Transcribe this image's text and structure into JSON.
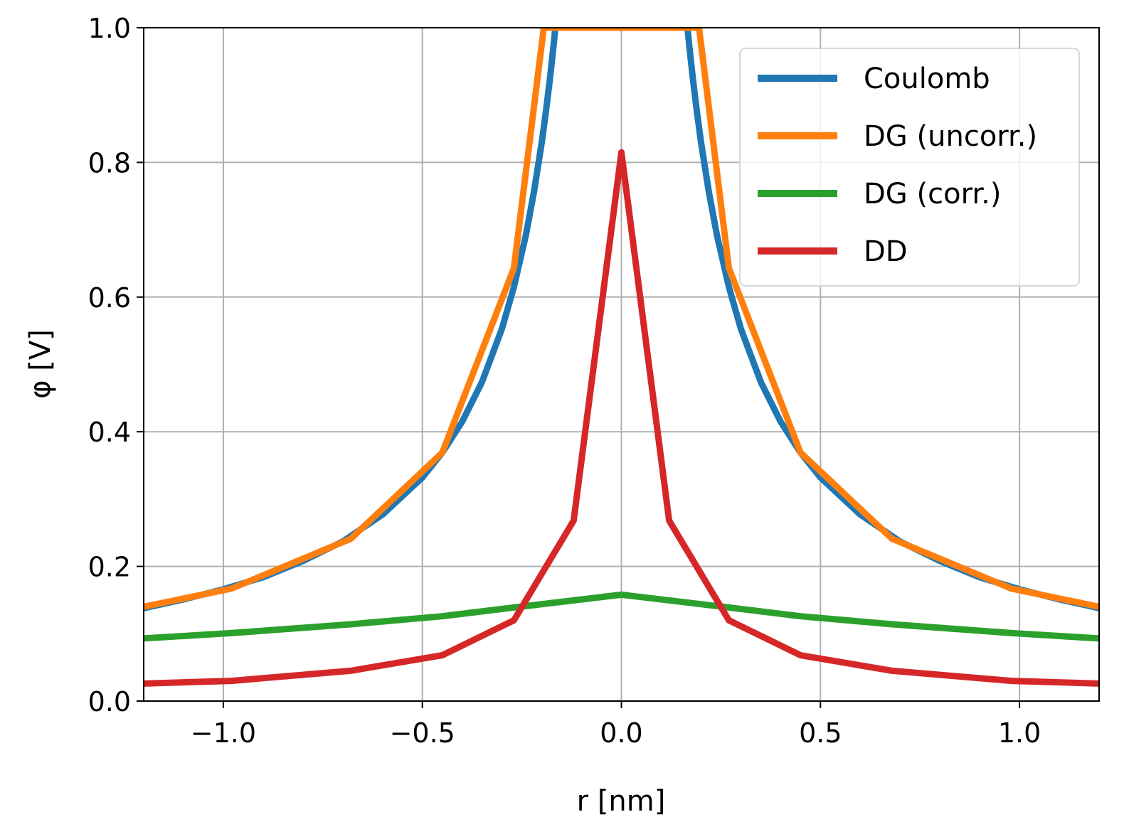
{
  "chart_data": {
    "type": "line",
    "title": "",
    "xlabel": "r [nm]",
    "ylabel": "φ [V]",
    "xlim": [
      -1.2,
      1.2
    ],
    "ylim": [
      0.0,
      1.0
    ],
    "grid": true,
    "legend_position": "top-right",
    "x_ticks": [
      {
        "value": -1.0,
        "label": "−1.0"
      },
      {
        "value": -0.5,
        "label": "−0.5"
      },
      {
        "value": 0.0,
        "label": "0.0"
      },
      {
        "value": 0.5,
        "label": "0.5"
      },
      {
        "value": 1.0,
        "label": "1.0"
      }
    ],
    "y_ticks": [
      {
        "value": 0.0,
        "label": "0.0"
      },
      {
        "value": 0.2,
        "label": "0.2"
      },
      {
        "value": 0.4,
        "label": "0.4"
      },
      {
        "value": 0.6,
        "label": "0.6"
      },
      {
        "value": 0.8,
        "label": "0.8"
      },
      {
        "value": 1.0,
        "label": "1.0"
      }
    ],
    "series": [
      {
        "name": "Coulomb",
        "color": "#1f77b4",
        "x": [
          -1.2,
          -1.1,
          -1.0,
          -0.9,
          -0.8,
          -0.7,
          -0.6,
          -0.5,
          -0.45,
          -0.4,
          -0.35,
          -0.3,
          -0.27,
          -0.24,
          -0.22,
          -0.2,
          -0.19,
          -0.18,
          -0.17,
          -0.166,
          0.166,
          0.17,
          0.18,
          0.19,
          0.2,
          0.22,
          0.24,
          0.27,
          0.3,
          0.35,
          0.4,
          0.45,
          0.5,
          0.6,
          0.7,
          0.8,
          0.9,
          1.0,
          1.1,
          1.2
        ],
        "y": [
          0.138,
          0.151,
          0.166,
          0.184,
          0.208,
          0.237,
          0.277,
          0.332,
          0.369,
          0.415,
          0.474,
          0.553,
          0.615,
          0.692,
          0.755,
          0.83,
          0.874,
          0.922,
          0.976,
          1.0,
          1.0,
          0.976,
          0.922,
          0.874,
          0.83,
          0.755,
          0.692,
          0.615,
          0.553,
          0.474,
          0.415,
          0.369,
          0.332,
          0.277,
          0.237,
          0.208,
          0.184,
          0.166,
          0.151,
          0.138
        ]
      },
      {
        "name": "DG (uncorr.)",
        "color": "#ff7f0e",
        "x": [
          -1.2,
          -0.98,
          -0.68,
          -0.45,
          -0.27,
          -0.195,
          0.195,
          0.27,
          0.45,
          0.68,
          0.98,
          1.2
        ],
        "y": [
          0.14,
          0.167,
          0.241,
          0.369,
          0.643,
          1.0,
          1.0,
          0.643,
          0.369,
          0.241,
          0.167,
          0.14
        ]
      },
      {
        "name": "DG (corr.)",
        "color": "#2ca02c",
        "x": [
          -1.2,
          -0.98,
          -0.68,
          -0.45,
          -0.27,
          0.0,
          0.27,
          0.45,
          0.68,
          0.98,
          1.2
        ],
        "y": [
          0.093,
          0.101,
          0.114,
          0.126,
          0.139,
          0.158,
          0.139,
          0.126,
          0.114,
          0.101,
          0.093
        ]
      },
      {
        "name": "DD",
        "color": "#d62728",
        "x": [
          -1.2,
          -0.98,
          -0.68,
          -0.45,
          -0.27,
          -0.12,
          0.0,
          0.12,
          0.27,
          0.45,
          0.68,
          0.98,
          1.2
        ],
        "y": [
          0.026,
          0.03,
          0.045,
          0.068,
          0.12,
          0.268,
          0.815,
          0.268,
          0.12,
          0.068,
          0.045,
          0.03,
          0.026
        ]
      }
    ]
  }
}
